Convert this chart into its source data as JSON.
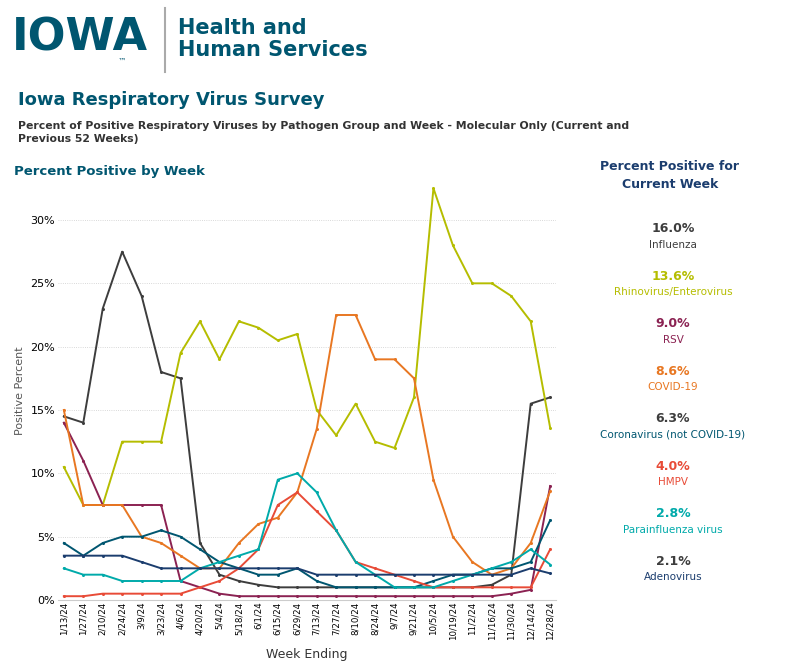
{
  "title_main": "Iowa Respiratory Virus Survey",
  "subtitle": "Percent of Positive Respiratory Viruses by Pathogen Group and Week - Molecular Only (Current and\nPrevious 52 Weeks)",
  "ylabel": "Positive Percent",
  "xlabel": "Week Ending",
  "chart_label": "Percent Positive by Week",
  "legend_title": "Percent Positive for\nCurrent Week",
  "background_color": "#ffffff",
  "x_labels": [
    "1/13/24",
    "1/27/24",
    "2/10/24",
    "2/24/24",
    "3/9/24",
    "3/23/24",
    "4/6/24",
    "4/20/24",
    "5/4/24",
    "5/18/24",
    "6/1/24",
    "6/15/24",
    "6/29/24",
    "7/13/24",
    "7/27/24",
    "8/10/24",
    "8/24/24",
    "9/7/24",
    "9/21/24",
    "10/5/24",
    "10/19/24",
    "11/2/24",
    "11/16/24",
    "11/30/24",
    "12/14/24",
    "12/28/24"
  ],
  "series": [
    {
      "name": "Influenza",
      "color": "#3d3d3d",
      "current_pct": "16.0%",
      "pct_color": "#3d3d3d",
      "name_color": "#3d3d3d",
      "values": [
        14.5,
        14.0,
        23.0,
        27.5,
        24.0,
        18.0,
        17.5,
        4.5,
        2.0,
        1.5,
        1.2,
        1.0,
        1.0,
        1.0,
        1.0,
        1.0,
        1.0,
        1.0,
        1.0,
        1.0,
        1.0,
        1.0,
        1.2,
        2.0,
        15.5,
        16.0
      ]
    },
    {
      "name": "Rhinovirus/Enterovirus",
      "color": "#b5bd00",
      "current_pct": "13.6%",
      "pct_color": "#b5bd00",
      "name_color": "#b5bd00",
      "values": [
        10.5,
        7.5,
        7.5,
        12.5,
        12.5,
        12.5,
        19.5,
        22.0,
        19.0,
        22.0,
        21.5,
        20.5,
        21.0,
        15.0,
        13.0,
        15.5,
        12.5,
        12.0,
        16.0,
        32.5,
        28.0,
        25.0,
        25.0,
        24.0,
        22.0,
        13.6
      ]
    },
    {
      "name": "RSV",
      "color": "#8B2252",
      "current_pct": "9.0%",
      "pct_color": "#8B2252",
      "name_color": "#8B2252",
      "values": [
        14.0,
        11.0,
        7.5,
        7.5,
        7.5,
        7.5,
        1.5,
        1.0,
        0.5,
        0.3,
        0.3,
        0.3,
        0.3,
        0.3,
        0.3,
        0.3,
        0.3,
        0.3,
        0.3,
        0.3,
        0.3,
        0.3,
        0.3,
        0.5,
        0.8,
        9.0
      ]
    },
    {
      "name": "COVID-19",
      "color": "#E87722",
      "current_pct": "8.6%",
      "pct_color": "#E87722",
      "name_color": "#E87722",
      "values": [
        15.0,
        7.5,
        7.5,
        7.5,
        5.0,
        4.5,
        3.5,
        2.5,
        2.5,
        4.5,
        6.0,
        6.5,
        8.5,
        13.5,
        22.5,
        22.5,
        19.0,
        19.0,
        17.5,
        9.5,
        5.0,
        3.0,
        2.0,
        2.5,
        4.5,
        8.6
      ]
    },
    {
      "name": "Coronavirus (not COVID-19)",
      "color": "#005670",
      "current_pct": "6.3%",
      "pct_color": "#3d3d3d",
      "name_color": "#005670",
      "values": [
        4.5,
        3.5,
        4.5,
        5.0,
        5.0,
        5.5,
        5.0,
        4.0,
        3.0,
        2.5,
        2.0,
        2.0,
        2.5,
        1.5,
        1.0,
        1.0,
        1.0,
        1.0,
        1.0,
        1.5,
        2.0,
        2.0,
        2.5,
        2.5,
        3.0,
        6.3
      ]
    },
    {
      "name": "HMPV",
      "color": "#E84B37",
      "current_pct": "4.0%",
      "pct_color": "#E84B37",
      "name_color": "#E84B37",
      "values": [
        0.3,
        0.3,
        0.5,
        0.5,
        0.5,
        0.5,
        0.5,
        1.0,
        1.5,
        2.5,
        4.0,
        7.5,
        8.5,
        7.0,
        5.5,
        3.0,
        2.5,
        2.0,
        1.5,
        1.0,
        1.0,
        1.0,
        1.0,
        1.0,
        1.0,
        4.0
      ]
    },
    {
      "name": "Parainfluenza virus",
      "color": "#00AAAA",
      "current_pct": "2.8%",
      "pct_color": "#00AAAA",
      "name_color": "#00AAAA",
      "values": [
        2.5,
        2.0,
        2.0,
        1.5,
        1.5,
        1.5,
        1.5,
        2.5,
        3.0,
        3.5,
        4.0,
        9.5,
        10.0,
        8.5,
        5.5,
        3.0,
        2.0,
        1.0,
        1.0,
        1.0,
        1.5,
        2.0,
        2.5,
        3.0,
        4.0,
        2.8
      ]
    },
    {
      "name": "Adenovirus",
      "color": "#1B3D6E",
      "current_pct": "2.1%",
      "pct_color": "#3d3d3d",
      "name_color": "#1B3D6E",
      "values": [
        3.5,
        3.5,
        3.5,
        3.5,
        3.0,
        2.5,
        2.5,
        2.5,
        2.5,
        2.5,
        2.5,
        2.5,
        2.5,
        2.0,
        2.0,
        2.0,
        2.0,
        2.0,
        2.0,
        2.0,
        2.0,
        2.0,
        2.0,
        2.0,
        2.5,
        2.1
      ]
    }
  ],
  "ylim": [
    0,
    33
  ],
  "yticks": [
    0,
    5,
    10,
    15,
    20,
    25,
    30
  ],
  "iowa_text_color": "#005670",
  "hhs_text_color": "#005670",
  "chart_label_color": "#005670",
  "title_color": "#005670",
  "subtitle_color": "#333333",
  "legend_title_color": "#1B3D6E"
}
